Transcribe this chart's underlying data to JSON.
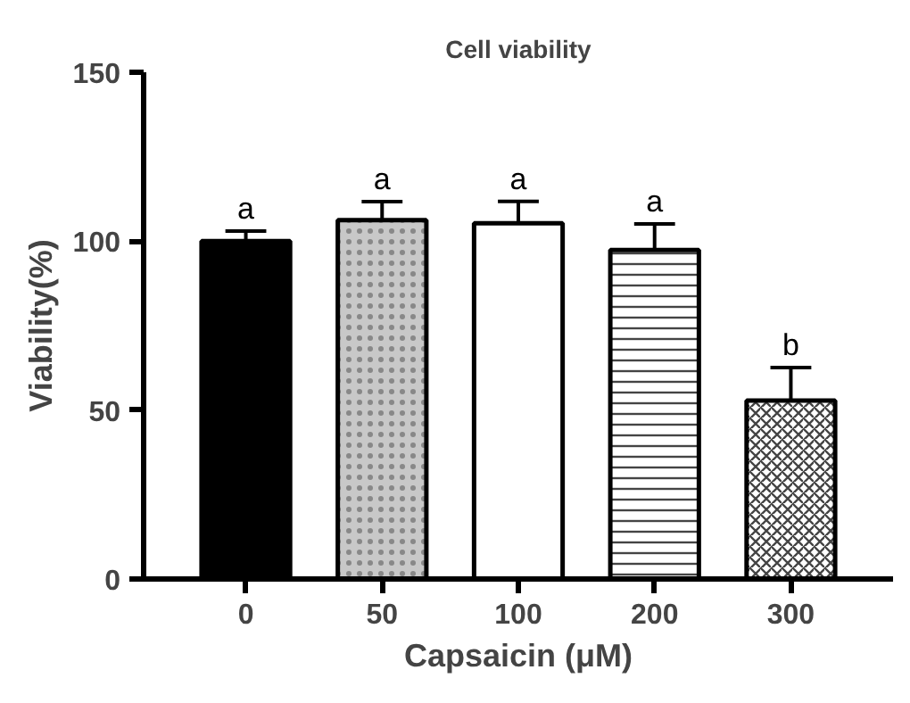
{
  "chart_data": {
    "type": "bar",
    "title": "Cell viability",
    "xlabel": "Capsaicin (μM)",
    "ylabel": "Viability(%)",
    "categories": [
      "0",
      "50",
      "100",
      "200",
      "300"
    ],
    "values": [
      100,
      106.2,
      105.3,
      97.4,
      52.8
    ],
    "errors": [
      3,
      5.5,
      6.5,
      7.7,
      9.8
    ],
    "colors": [
      "#000000",
      "#c8c8c8",
      "#ffffff",
      "#ffffff",
      "#ffffff"
    ],
    "ylim": [
      0,
      150
    ],
    "yticks": [
      0,
      50,
      100,
      150
    ],
    "grid": false,
    "annotations": [
      {
        "text": "a",
        "x": "0",
        "y": 103
      },
      {
        "text": "a",
        "x": "50",
        "y": 111.7
      },
      {
        "text": "a",
        "x": "100",
        "y": 111.8
      },
      {
        "text": "a",
        "x": "200",
        "y": 105.1
      },
      {
        "text": "b",
        "x": "300",
        "y": 62.6
      }
    ]
  }
}
